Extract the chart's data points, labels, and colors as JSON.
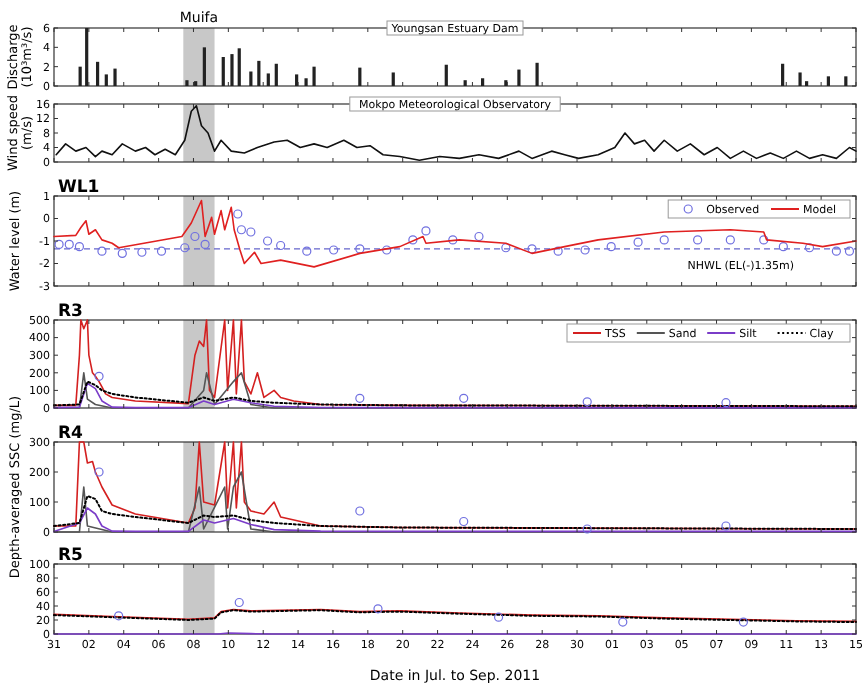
{
  "chart_data": [
    {
      "type": "bar",
      "ylabel": "Discharge (10³m³/s)",
      "annotations": [
        "Youngsan Estuary Dam"
      ],
      "tick_labels": "y",
      "xlim": [
        "2011-07-31",
        "2011-09-15"
      ],
      "ylim": [
        0,
        6
      ],
      "yticks": [
        0,
        2,
        4,
        6
      ],
      "xticks": [
        {
          "value": "2011-07-31",
          "label": null
        },
        {
          "value": "2011-08-02",
          "label": null
        },
        {
          "value": "2011-08-04",
          "label": null
        },
        {
          "value": "2011-08-06",
          "label": null
        },
        {
          "value": "2011-08-08",
          "label": null
        },
        {
          "value": "2011-08-10",
          "label": null
        },
        {
          "value": "2011-08-12",
          "label": null
        },
        {
          "value": "2011-08-14",
          "label": null
        },
        {
          "value": "2011-08-16",
          "label": null
        },
        {
          "value": "2011-08-18",
          "label": null
        },
        {
          "value": "2011-08-20",
          "label": null
        },
        {
          "value": "2011-08-22",
          "label": null
        },
        {
          "value": "2011-08-24",
          "label": null
        },
        {
          "value": "2011-08-26",
          "label": null
        },
        {
          "value": "2011-08-28",
          "label": null
        },
        {
          "value": "2011-08-30",
          "label": null
        },
        {
          "value": "2011-09-01",
          "label": null
        },
        {
          "value": "2011-09-03",
          "label": null
        },
        {
          "value": "2011-09-05",
          "label": null
        },
        {
          "value": "2011-09-07",
          "label": null
        },
        {
          "value": "2011-09-09",
          "label": null
        },
        {
          "value": "2011-09-11",
          "label": null
        },
        {
          "value": "2011-09-13",
          "label": null
        },
        {
          "value": "2011-09-15",
          "label": null
        }
      ],
      "bands": [
        {
          "axis": "x",
          "from": "2011-08-07T10:00",
          "to": "2011-08-09T05:00",
          "label": "Muifa",
          "color": "#c8c8c8"
        }
      ],
      "color": "#222222",
      "x": [
        "2011-08-01T12:00",
        "2011-08-01T21:00",
        "2011-08-02T12:00",
        "2011-08-03T00:00",
        "2011-08-03T12:00",
        "2011-08-07T15:00",
        "2011-08-08T03:00",
        "2011-08-08T15:00",
        "2011-08-09T17:00",
        "2011-08-10T05:00",
        "2011-08-10T15:00",
        "2011-08-11T07:00",
        "2011-08-11T18:00",
        "2011-08-12T07:00",
        "2011-08-12T18:00",
        "2011-08-13T22:00",
        "2011-08-14T11:00",
        "2011-08-14T22:00",
        "2011-08-17T13:00",
        "2011-08-19T11:00",
        "2011-08-22T12:00",
        "2011-08-23T14:00",
        "2011-08-24T14:00",
        "2011-08-25T22:00",
        "2011-08-26T16:00",
        "2011-08-27T17:00",
        "2011-09-10T19:00",
        "2011-09-11T19:00",
        "2011-09-12T04:00",
        "2011-09-13T10:00",
        "2011-09-14T10:00"
      ],
      "values": [
        2.0,
        6.0,
        2.5,
        1.2,
        1.8,
        0.6,
        0.5,
        4.0,
        3.0,
        3.3,
        3.9,
        1.5,
        2.6,
        1.3,
        2.3,
        1.2,
        0.8,
        2.0,
        1.9,
        1.4,
        2.2,
        0.6,
        0.8,
        0.6,
        1.7,
        2.4,
        2.3,
        1.4,
        0.5,
        1.0,
        1.0
      ]
    },
    {
      "type": "line",
      "ylabel": "Wind speed (m/s)",
      "annotations": [
        "Mokpo Meteorological Observatory"
      ],
      "tick_labels": "y",
      "xlim": [
        "2011-07-31",
        "2011-09-15"
      ],
      "ylim": [
        0,
        16
      ],
      "yticks": [
        0,
        4,
        8,
        12,
        16
      ],
      "xticks": [
        {
          "value": "2011-07-31",
          "label": null
        },
        {
          "value": "2011-08-02",
          "label": null
        },
        {
          "value": "2011-08-04",
          "label": null
        },
        {
          "value": "2011-08-06",
          "label": null
        },
        {
          "value": "2011-08-08",
          "label": null
        },
        {
          "value": "2011-08-10",
          "label": null
        },
        {
          "value": "2011-08-12",
          "label": null
        },
        {
          "value": "2011-08-14",
          "label": null
        },
        {
          "value": "2011-08-16",
          "label": null
        },
        {
          "value": "2011-08-18",
          "label": null
        },
        {
          "value": "2011-08-20",
          "label": null
        },
        {
          "value": "2011-08-22",
          "label": null
        },
        {
          "value": "2011-08-24",
          "label": null
        },
        {
          "value": "2011-08-26",
          "label": null
        },
        {
          "value": "2011-08-28",
          "label": null
        },
        {
          "value": "2011-08-30",
          "label": null
        },
        {
          "value": "2011-09-01",
          "label": null
        },
        {
          "value": "2011-09-03",
          "label": null
        },
        {
          "value": "2011-09-05",
          "label": null
        },
        {
          "value": "2011-09-07",
          "label": null
        },
        {
          "value": "2011-09-09",
          "label": null
        },
        {
          "value": "2011-09-11",
          "label": null
        },
        {
          "value": "2011-09-13",
          "label": null
        },
        {
          "value": "2011-09-15",
          "label": null
        }
      ],
      "bands": [
        {
          "axis": "x",
          "from": "2011-08-07T10:00",
          "to": "2011-08-09T05:00",
          "color": "#c8c8c8"
        }
      ],
      "color": "#111111",
      "x": [
        "2011-07-31T03:00",
        "2011-07-31T16:00",
        "2011-08-01T06:00",
        "2011-08-01T20:00",
        "2011-08-02T09:00",
        "2011-08-02T18:00",
        "2011-08-03T08:00",
        "2011-08-03T22:00",
        "2011-08-04T16:00",
        "2011-08-05T06:00",
        "2011-08-05T19:00",
        "2011-08-06T09:00",
        "2011-08-06T23:00",
        "2011-08-07T12:00",
        "2011-08-07T21:00",
        "2011-08-08T04:00",
        "2011-08-08T11:00",
        "2011-08-08T20:00",
        "2011-08-09T05:00",
        "2011-08-09T14:00",
        "2011-08-10T04:00",
        "2011-08-10T22:00",
        "2011-08-11T16:00",
        "2011-08-12T15:00",
        "2011-08-13T09:00",
        "2011-08-14T03:00",
        "2011-08-14T22:00",
        "2011-08-15T16:00",
        "2011-08-16T15:00",
        "2011-08-17T09:00",
        "2011-08-18T03:00",
        "2011-08-18T21:00",
        "2011-08-19T20:00",
        "2011-08-20T23:00",
        "2011-08-22T03:00",
        "2011-08-23T06:00",
        "2011-08-24T09:00",
        "2011-08-25T12:00",
        "2011-08-26T16:00",
        "2011-08-27T10:00",
        "2011-08-28T13:00",
        "2011-08-29T07:00",
        "2011-08-30T02:00",
        "2011-08-31T05:00",
        "2011-09-01T04:00",
        "2011-09-01T18:00",
        "2011-09-02T07:00",
        "2011-09-02T21:00",
        "2011-09-03T10:00",
        "2011-09-04T00:00",
        "2011-09-04T18:00",
        "2011-09-05T12:00",
        "2011-09-06T07:00",
        "2011-09-07T01:00",
        "2011-09-07T19:00",
        "2011-09-08T13:00",
        "2011-09-09T07:00",
        "2011-09-10T02:00",
        "2011-09-10T20:00",
        "2011-09-11T14:00",
        "2011-09-12T08:00",
        "2011-09-13T02:00",
        "2011-09-13T21:00",
        "2011-09-14T15:00",
        "2011-09-15T00:00"
      ],
      "values": [
        2,
        5,
        3,
        4,
        1.5,
        3,
        2,
        5,
        3,
        4,
        2,
        3.5,
        2,
        6,
        14,
        15.5,
        10,
        8,
        3,
        6,
        3,
        2.5,
        4,
        5.5,
        6,
        4,
        5,
        4,
        6,
        4,
        4.5,
        2,
        1.5,
        0.5,
        1.5,
        1,
        2,
        1,
        3,
        1,
        3,
        2,
        1,
        2,
        4,
        8,
        5,
        6,
        3,
        6,
        3,
        5,
        2,
        4,
        1,
        3,
        1,
        2.5,
        1,
        3,
        1,
        2,
        1,
        4,
        3
      ]
    },
    {
      "type": "line",
      "title": "WL1",
      "ylabel": "Water level (m)",
      "legend": "top right",
      "tick_labels": "y",
      "xlim": [
        "2011-07-31",
        "2011-09-15"
      ],
      "ylim": [
        -3,
        1
      ],
      "yticks": [
        -3,
        -2,
        -1,
        0,
        1
      ],
      "xticks": [
        {
          "value": "2011-07-31",
          "label": null
        },
        {
          "value": "2011-08-02",
          "label": null
        },
        {
          "value": "2011-08-04",
          "label": null
        },
        {
          "value": "2011-08-06",
          "label": null
        },
        {
          "value": "2011-08-08",
          "label": null
        },
        {
          "value": "2011-08-10",
          "label": null
        },
        {
          "value": "2011-08-12",
          "label": null
        },
        {
          "value": "2011-08-14",
          "label": null
        },
        {
          "value": "2011-08-16",
          "label": null
        },
        {
          "value": "2011-08-18",
          "label": null
        },
        {
          "value": "2011-08-20",
          "label": null
        },
        {
          "value": "2011-08-22",
          "label": null
        },
        {
          "value": "2011-08-24",
          "label": null
        },
        {
          "value": "2011-08-26",
          "label": null
        },
        {
          "value": "2011-08-28",
          "label": null
        },
        {
          "value": "2011-08-30",
          "label": null
        },
        {
          "value": "2011-09-01",
          "label": null
        },
        {
          "value": "2011-09-03",
          "label": null
        },
        {
          "value": "2011-09-05",
          "label": null
        },
        {
          "value": "2011-09-07",
          "label": null
        },
        {
          "value": "2011-09-09",
          "label": null
        },
        {
          "value": "2011-09-11",
          "label": null
        },
        {
          "value": "2011-09-13",
          "label": null
        },
        {
          "value": "2011-09-15",
          "label": null
        }
      ],
      "bands": [
        {
          "axis": "x",
          "from": "2011-08-07T10:00",
          "to": "2011-08-09T05:00",
          "color": "#c8c8c8"
        }
      ],
      "ref_lines": [
        {
          "axis": "y",
          "value": -1.35,
          "label": "NHWL (EL(-)1.35m)",
          "color": "#6666cc",
          "line_style": "dashed"
        }
      ],
      "series": [
        {
          "name": "Observed",
          "type": "scatter",
          "marker": "circle",
          "color": "#7070e0",
          "x": [
            "2011-07-31T07:00",
            "2011-07-31T21:00",
            "2011-08-01T11:00",
            "2011-08-02T18:00",
            "2011-08-03T22:00",
            "2011-08-05T01:00",
            "2011-08-06T04:00",
            "2011-08-07T12:00",
            "2011-08-08T02:00",
            "2011-08-08T16:00",
            "2011-08-10T13:00",
            "2011-08-10T18:00",
            "2011-08-11T07:00",
            "2011-08-12T06:00",
            "2011-08-13T00:00",
            "2011-08-14T12:00",
            "2011-08-16T01:00",
            "2011-08-17T13:00",
            "2011-08-19T02:00",
            "2011-08-20T14:00",
            "2011-08-21T08:00",
            "2011-08-22T21:00",
            "2011-08-24T09:00",
            "2011-08-25T22:00",
            "2011-08-27T10:00",
            "2011-08-28T22:00",
            "2011-08-30T11:00",
            "2011-08-31T23:00",
            "2011-09-02T12:00",
            "2011-09-04T00:00",
            "2011-09-05T22:00",
            "2011-09-07T19:00",
            "2011-09-09T17:00",
            "2011-09-10T20:00",
            "2011-09-12T08:00",
            "2011-09-13T21:00",
            "2011-09-14T15:00"
          ],
          "values": [
            -1.15,
            -1.15,
            -1.25,
            -1.45,
            -1.55,
            -1.5,
            -1.45,
            -1.3,
            -0.8,
            -1.15,
            0.2,
            -0.5,
            -0.6,
            -1.0,
            -1.2,
            -1.45,
            -1.4,
            -1.35,
            -1.4,
            -0.95,
            -0.55,
            -0.95,
            -0.8,
            -1.3,
            -1.35,
            -1.45,
            -1.4,
            -1.25,
            -1.05,
            -0.95,
            -0.95,
            -0.95,
            -0.95,
            -1.25,
            -1.3,
            -1.45,
            -1.45
          ]
        },
        {
          "name": "Model",
          "color": "#e02020",
          "x": [
            "2011-07-31T00:00",
            "2011-08-01T06:00",
            "2011-08-01T13:00",
            "2011-08-01T20:00",
            "2011-08-02T00:00",
            "2011-08-02T09:00",
            "2011-08-02T18:00",
            "2011-08-03T08:00",
            "2011-08-03T17:00",
            "2011-08-07T08:00",
            "2011-08-07T21:00",
            "2011-08-08T11:00",
            "2011-08-08T16:00",
            "2011-08-09T01:00",
            "2011-08-09T05:00",
            "2011-08-09T14:00",
            "2011-08-09T19:00",
            "2011-08-10T04:00",
            "2011-08-10T08:00",
            "2011-08-10T16:00",
            "2011-08-10T22:00",
            "2011-08-11T12:00",
            "2011-08-11T21:00",
            "2011-08-13T00:00",
            "2011-08-14T22:00",
            "2011-08-17T13:00",
            "2011-08-19T20:00",
            "2011-08-21T04:00",
            "2011-08-21T08:00",
            "2011-08-23T06:00",
            "2011-08-25T22:00",
            "2011-08-27T10:00",
            "2011-08-29T07:00",
            "2011-08-31T05:00",
            "2011-09-04T00:00",
            "2011-09-07T19:00",
            "2011-09-09T17:00",
            "2011-09-09T21:00",
            "2011-09-11T23:00",
            "2011-09-13T02:00",
            "2011-09-15T00:00"
          ],
          "values": [
            -0.8,
            -0.75,
            -0.4,
            -0.1,
            -0.7,
            -0.5,
            -0.95,
            -1.1,
            -1.3,
            -0.8,
            -0.2,
            0.8,
            -0.8,
            0.05,
            -0.7,
            0.35,
            -0.5,
            0.5,
            -0.5,
            -1.4,
            -2.0,
            -1.5,
            -2.0,
            -1.85,
            -2.15,
            -1.55,
            -1.25,
            -0.8,
            -1.1,
            -0.95,
            -1.1,
            -1.55,
            -1.25,
            -0.95,
            -0.6,
            -0.5,
            -0.6,
            -0.95,
            -1.1,
            -1.25,
            -1.0
          ]
        }
      ]
    },
    {
      "type": "line",
      "title": "R3",
      "legend": "top right",
      "tick_labels": "y",
      "xlim": [
        "2011-07-31",
        "2011-09-15"
      ],
      "ylim": [
        0,
        500
      ],
      "yticks": [
        0,
        100,
        200,
        300,
        400,
        500
      ],
      "xticks": [
        {
          "value": "2011-07-31",
          "label": null
        },
        {
          "value": "2011-08-02",
          "label": null
        },
        {
          "value": "2011-08-04",
          "label": null
        },
        {
          "value": "2011-08-06",
          "label": null
        },
        {
          "value": "2011-08-08",
          "label": null
        },
        {
          "value": "2011-08-10",
          "label": null
        },
        {
          "value": "2011-08-12",
          "label": null
        },
        {
          "value": "2011-08-14",
          "label": null
        },
        {
          "value": "2011-08-16",
          "label": null
        },
        {
          "value": "2011-08-18",
          "label": null
        },
        {
          "value": "2011-08-20",
          "label": null
        },
        {
          "value": "2011-08-22",
          "label": null
        },
        {
          "value": "2011-08-24",
          "label": null
        },
        {
          "value": "2011-08-26",
          "label": null
        },
        {
          "value": "2011-08-28",
          "label": null
        },
        {
          "value": "2011-08-30",
          "label": null
        },
        {
          "value": "2011-09-01",
          "label": null
        },
        {
          "value": "2011-09-03",
          "label": null
        },
        {
          "value": "2011-09-05",
          "label": null
        },
        {
          "value": "2011-09-07",
          "label": null
        },
        {
          "value": "2011-09-09",
          "label": null
        },
        {
          "value": "2011-09-11",
          "label": null
        },
        {
          "value": "2011-09-13",
          "label": null
        },
        {
          "value": "2011-09-15",
          "label": null
        }
      ],
      "bands": [
        {
          "axis": "x",
          "from": "2011-08-07T10:00",
          "to": "2011-08-09T05:00",
          "color": "#c8c8c8"
        }
      ],
      "series": [
        {
          "name": "TSS",
          "color": "#d42020",
          "x": [
            "2011-07-31T00:00",
            "2011-08-01T06:00",
            "2011-08-01T11:00",
            "2011-08-01T13:00",
            "2011-08-01T17:00",
            "2011-08-01T22:00",
            "2011-08-02T00:00",
            "2011-08-02T05:00",
            "2011-08-02T09:00",
            "2011-08-02T14:00",
            "2011-08-02T18:00",
            "2011-08-02T23:00",
            "2011-08-03T08:00",
            "2011-08-04T16:00",
            "2011-08-07T17:00",
            "2011-08-08T02:00",
            "2011-08-08T08:00",
            "2011-08-08T14:00",
            "2011-08-08T18:00",
            "2011-08-08T22:00",
            "2011-08-09T05:00",
            "2011-08-09T19:00",
            "2011-08-09T23:00",
            "2011-08-10T07:00",
            "2011-08-10T11:00",
            "2011-08-10T18:00",
            "2011-08-10T22:00",
            "2011-08-11T07:00",
            "2011-08-11T16:00",
            "2011-08-12T01:00",
            "2011-08-12T15:00",
            "2011-08-13T00:00",
            "2011-08-13T18:00",
            "2011-08-15T07:00",
            "2011-08-19T20:00",
            "2011-09-15T00:00"
          ],
          "values": [
            15,
            15,
            300,
            500,
            450,
            500,
            300,
            200,
            180,
            150,
            120,
            80,
            60,
            40,
            25,
            300,
            380,
            350,
            500,
            100,
            60,
            500,
            100,
            500,
            80,
            500,
            150,
            80,
            200,
            60,
            100,
            60,
            40,
            20,
            15,
            10
          ]
        },
        {
          "name": "Sand",
          "color": "#555555",
          "x": [
            "2011-07-31T00:00",
            "2011-08-01T11:00",
            "2011-08-01T17:00",
            "2011-08-01T22:00",
            "2011-08-02T09:00",
            "2011-08-03T08:00",
            "2011-08-07T17:00",
            "2011-08-08T14:00",
            "2011-08-08T18:00",
            "2011-08-09T05:00",
            "2011-08-10T07:00",
            "2011-08-10T18:00",
            "2011-08-11T07:00",
            "2011-08-12T15:00",
            "2011-09-15T00:00"
          ],
          "values": [
            0,
            0,
            200,
            50,
            20,
            0,
            0,
            100,
            200,
            20,
            150,
            200,
            20,
            0,
            0
          ]
        },
        {
          "name": "Silt",
          "color": "#7a3cc8",
          "x": [
            "2011-07-31T00:00",
            "2011-08-01T11:00",
            "2011-08-01T22:00",
            "2011-08-02T09:00",
            "2011-08-02T18:00",
            "2011-08-03T08:00",
            "2011-08-04T16:00",
            "2011-08-07T17:00",
            "2011-08-08T14:00",
            "2011-08-09T05:00",
            "2011-08-10T07:00",
            "2011-08-11T07:00",
            "2011-08-12T15:00",
            "2011-08-15T07:00",
            "2011-08-19T20:00",
            "2011-09-15T00:00"
          ],
          "values": [
            2,
            5,
            140,
            110,
            40,
            5,
            2,
            2,
            40,
            20,
            50,
            30,
            10,
            3,
            2,
            2
          ]
        },
        {
          "name": "Clay",
          "line_style": "dotted",
          "color": "#000000",
          "x": [
            "2011-07-31T00:00",
            "2011-08-01T11:00",
            "2011-08-01T22:00",
            "2011-08-02T09:00",
            "2011-08-02T18:00",
            "2011-08-03T08:00",
            "2011-08-04T16:00",
            "2011-08-07T17:00",
            "2011-08-08T14:00",
            "2011-08-09T05:00",
            "2011-08-10T07:00",
            "2011-08-11T07:00",
            "2011-08-12T15:00",
            "2011-08-15T07:00",
            "2011-08-19T20:00",
            "2011-09-15T00:00"
          ],
          "values": [
            15,
            20,
            150,
            130,
            100,
            80,
            60,
            30,
            60,
            40,
            60,
            40,
            30,
            20,
            15,
            10
          ]
        },
        {
          "type": "scatter",
          "marker": "circle",
          "color": "#7070e0",
          "x": [
            "2011-08-02T14:00",
            "2011-08-17T13:00",
            "2011-08-23T12:00",
            "2011-08-30T14:00",
            "2011-09-07T13:00"
          ],
          "values": [
            180,
            55,
            55,
            35,
            30
          ]
        }
      ]
    },
    {
      "type": "line",
      "title": "R4",
      "ylabel": "Depth-averaged SSC (mg/L)",
      "tick_labels": "y",
      "xlim": [
        "2011-07-31",
        "2011-09-15"
      ],
      "ylim": [
        0,
        300
      ],
      "yticks": [
        0,
        100,
        200,
        300
      ],
      "xticks": [
        {
          "value": "2011-07-31",
          "label": null
        },
        {
          "value": "2011-08-02",
          "label": null
        },
        {
          "value": "2011-08-04",
          "label": null
        },
        {
          "value": "2011-08-06",
          "label": null
        },
        {
          "value": "2011-08-08",
          "label": null
        },
        {
          "value": "2011-08-10",
          "label": null
        },
        {
          "value": "2011-08-12",
          "label": null
        },
        {
          "value": "2011-08-14",
          "label": null
        },
        {
          "value": "2011-08-16",
          "label": null
        },
        {
          "value": "2011-08-18",
          "label": null
        },
        {
          "value": "2011-08-20",
          "label": null
        },
        {
          "value": "2011-08-22",
          "label": null
        },
        {
          "value": "2011-08-24",
          "label": null
        },
        {
          "value": "2011-08-26",
          "label": null
        },
        {
          "value": "2011-08-28",
          "label": null
        },
        {
          "value": "2011-08-30",
          "label": null
        },
        {
          "value": "2011-09-01",
          "label": null
        },
        {
          "value": "2011-09-03",
          "label": null
        },
        {
          "value": "2011-09-05",
          "label": null
        },
        {
          "value": "2011-09-07",
          "label": null
        },
        {
          "value": "2011-09-09",
          "label": null
        },
        {
          "value": "2011-09-11",
          "label": null
        },
        {
          "value": "2011-09-13",
          "label": null
        },
        {
          "value": "2011-09-15",
          "label": null
        }
      ],
      "bands": [
        {
          "axis": "x",
          "from": "2011-08-07T10:00",
          "to": "2011-08-09T05:00",
          "color": "#c8c8c8"
        }
      ],
      "series": [
        {
          "color": "#d42020",
          "x": [
            "2011-07-31T00:00",
            "2011-08-01T06:00",
            "2011-08-01T11:00",
            "2011-08-01T17:00",
            "2011-08-01T22:00",
            "2011-08-02T05:00",
            "2011-08-02T09:00",
            "2011-08-02T18:00",
            "2011-08-03T08:00",
            "2011-08-04T16:00",
            "2011-08-07T17:00",
            "2011-08-08T02:00",
            "2011-08-08T08:00",
            "2011-08-08T14:00",
            "2011-08-09T05:00",
            "2011-08-09T19:00",
            "2011-08-09T23:00",
            "2011-08-10T07:00",
            "2011-08-10T11:00",
            "2011-08-10T18:00",
            "2011-08-10T22:00",
            "2011-08-11T07:00",
            "2011-08-12T01:00",
            "2011-08-12T15:00",
            "2011-08-13T00:00",
            "2011-08-15T07:00",
            "2011-08-19T20:00",
            "2011-09-15T00:00"
          ],
          "values": [
            20,
            20,
            300,
            300,
            230,
            235,
            200,
            150,
            90,
            60,
            30,
            80,
            300,
            100,
            90,
            300,
            80,
            300,
            80,
            300,
            100,
            70,
            60,
            100,
            50,
            20,
            15,
            10
          ]
        },
        {
          "color": "#555555",
          "x": [
            "2011-07-31T00:00",
            "2011-08-01T11:00",
            "2011-08-01T17:00",
            "2011-08-01T22:00",
            "2011-08-03T08:00",
            "2011-08-07T17:00",
            "2011-08-08T08:00",
            "2011-08-08T14:00",
            "2011-08-09T19:00",
            "2011-08-09T23:00",
            "2011-08-10T07:00",
            "2011-08-10T18:00",
            "2011-08-11T07:00",
            "2011-08-12T15:00",
            "2011-09-15T00:00"
          ],
          "values": [
            0,
            0,
            150,
            20,
            0,
            0,
            150,
            10,
            150,
            10,
            150,
            200,
            10,
            0,
            0
          ]
        },
        {
          "color": "#7a3cc8",
          "x": [
            "2011-07-31T00:00",
            "2011-08-01T11:00",
            "2011-08-01T22:00",
            "2011-08-02T09:00",
            "2011-08-02T18:00",
            "2011-08-03T08:00",
            "2011-08-04T16:00",
            "2011-08-07T17:00",
            "2011-08-08T14:00",
            "2011-08-09T05:00",
            "2011-08-10T07:00",
            "2011-08-11T07:00",
            "2011-08-12T15:00",
            "2011-08-15T07:00",
            "2011-08-19T20:00",
            "2011-09-15T00:00"
          ],
          "values": [
            2,
            30,
            80,
            60,
            20,
            3,
            2,
            2,
            40,
            30,
            45,
            25,
            8,
            3,
            2,
            2
          ]
        },
        {
          "line_style": "dotted",
          "color": "#000000",
          "x": [
            "2011-07-31T00:00",
            "2011-08-01T11:00",
            "2011-08-01T22:00",
            "2011-08-02T09:00",
            "2011-08-02T18:00",
            "2011-08-03T08:00",
            "2011-08-04T16:00",
            "2011-08-07T17:00",
            "2011-08-08T14:00",
            "2011-08-09T05:00",
            "2011-08-10T07:00",
            "2011-08-11T07:00",
            "2011-08-12T15:00",
            "2011-08-15T07:00",
            "2011-08-19T20:00",
            "2011-09-15T00:00"
          ],
          "values": [
            20,
            30,
            120,
            110,
            70,
            60,
            50,
            30,
            55,
            50,
            55,
            40,
            30,
            20,
            15,
            10
          ]
        },
        {
          "type": "scatter",
          "marker": "circle",
          "color": "#7070e0",
          "x": [
            "2011-08-02T14:00",
            "2011-08-17T13:00",
            "2011-08-23T12:00",
            "2011-08-30T14:00",
            "2011-09-07T13:00"
          ],
          "values": [
            200,
            70,
            35,
            10,
            20
          ]
        }
      ]
    },
    {
      "type": "line",
      "title": "R5",
      "xlabel": "Date in Jul. to Sep. 2011",
      "xlim": [
        "2011-07-31",
        "2011-09-15"
      ],
      "ylim": [
        0,
        100
      ],
      "yticks": [
        0,
        20,
        40,
        60,
        80,
        100
      ],
      "xticks": [
        {
          "value": "2011-07-31",
          "label": "31"
        },
        {
          "value": "2011-08-02",
          "label": "02"
        },
        {
          "value": "2011-08-04",
          "label": "04"
        },
        {
          "value": "2011-08-06",
          "label": "06"
        },
        {
          "value": "2011-08-08",
          "label": "08"
        },
        {
          "value": "2011-08-10",
          "label": "10"
        },
        {
          "value": "2011-08-12",
          "label": "12"
        },
        {
          "value": "2011-08-14",
          "label": "14"
        },
        {
          "value": "2011-08-16",
          "label": "16"
        },
        {
          "value": "2011-08-18",
          "label": "18"
        },
        {
          "value": "2011-08-20",
          "label": "20"
        },
        {
          "value": "2011-08-22",
          "label": "22"
        },
        {
          "value": "2011-08-24",
          "label": "24"
        },
        {
          "value": "2011-08-26",
          "label": "26"
        },
        {
          "value": "2011-08-28",
          "label": "28"
        },
        {
          "value": "2011-08-30",
          "label": "30"
        },
        {
          "value": "2011-09-01",
          "label": "01"
        },
        {
          "value": "2011-09-03",
          "label": "03"
        },
        {
          "value": "2011-09-05",
          "label": "05"
        },
        {
          "value": "2011-09-07",
          "label": "07"
        },
        {
          "value": "2011-09-09",
          "label": "09"
        },
        {
          "value": "2011-09-11",
          "label": "11"
        },
        {
          "value": "2011-09-13",
          "label": "13"
        },
        {
          "value": "2011-09-15",
          "label": "15"
        }
      ],
      "bands": [
        {
          "axis": "x",
          "from": "2011-08-07T10:00",
          "to": "2011-08-09T05:00",
          "color": "#c8c8c8"
        }
      ],
      "series": [
        {
          "color": "#d42020",
          "x": [
            "2011-07-31T00:00",
            "2011-08-03T08:00",
            "2011-08-07T17:00",
            "2011-08-09T05:00",
            "2011-08-09T14:00",
            "2011-08-10T07:00",
            "2011-08-11T07:00",
            "2011-08-15T07:00",
            "2011-08-17T13:00",
            "2011-08-19T20:00",
            "2011-08-23T06:00",
            "2011-08-27T10:00",
            "2011-08-31T05:00",
            "2011-09-04T00:00",
            "2011-09-07T19:00",
            "2011-09-11T14:00",
            "2011-09-15T00:00"
          ],
          "values": [
            28,
            25,
            21,
            23,
            32,
            35,
            33,
            35,
            32,
            33,
            30,
            27,
            26,
            23,
            21,
            19,
            18
          ]
        },
        {
          "color": "#7a3cc8",
          "x": [
            "2011-07-31T00:00",
            "2011-08-09T10:00",
            "2011-08-10T00:00",
            "2011-08-11T07:00",
            "2011-08-12T12:00",
            "2011-09-15T00:00"
          ],
          "values": [
            0,
            0,
            1.5,
            0.5,
            0,
            0
          ]
        },
        {
          "line_style": "dotted",
          "color": "#000000",
          "x": [
            "2011-07-31T00:00",
            "2011-08-03T08:00",
            "2011-08-07T17:00",
            "2011-08-09T05:00",
            "2011-08-09T14:00",
            "2011-08-10T07:00",
            "2011-08-11T07:00",
            "2011-08-15T07:00",
            "2011-08-17T13:00",
            "2011-08-19T20:00",
            "2011-08-23T06:00",
            "2011-08-27T10:00",
            "2011-08-31T05:00",
            "2011-09-04T00:00",
            "2011-09-07T19:00",
            "2011-09-11T14:00",
            "2011-09-15T00:00"
          ],
          "values": [
            27,
            24,
            20,
            22,
            31,
            34,
            32,
            34,
            31,
            32,
            29,
            26,
            25,
            22,
            20,
            18,
            17
          ]
        },
        {
          "type": "scatter",
          "marker": "circle",
          "color": "#7070e0",
          "x": [
            "2011-08-03T17:00",
            "2011-08-10T15:00",
            "2011-08-18T14:00",
            "2011-08-25T12:00",
            "2011-09-01T15:00",
            "2011-09-08T13:00"
          ],
          "values": [
            26,
            45,
            36,
            24,
            17,
            17
          ]
        }
      ]
    }
  ]
}
